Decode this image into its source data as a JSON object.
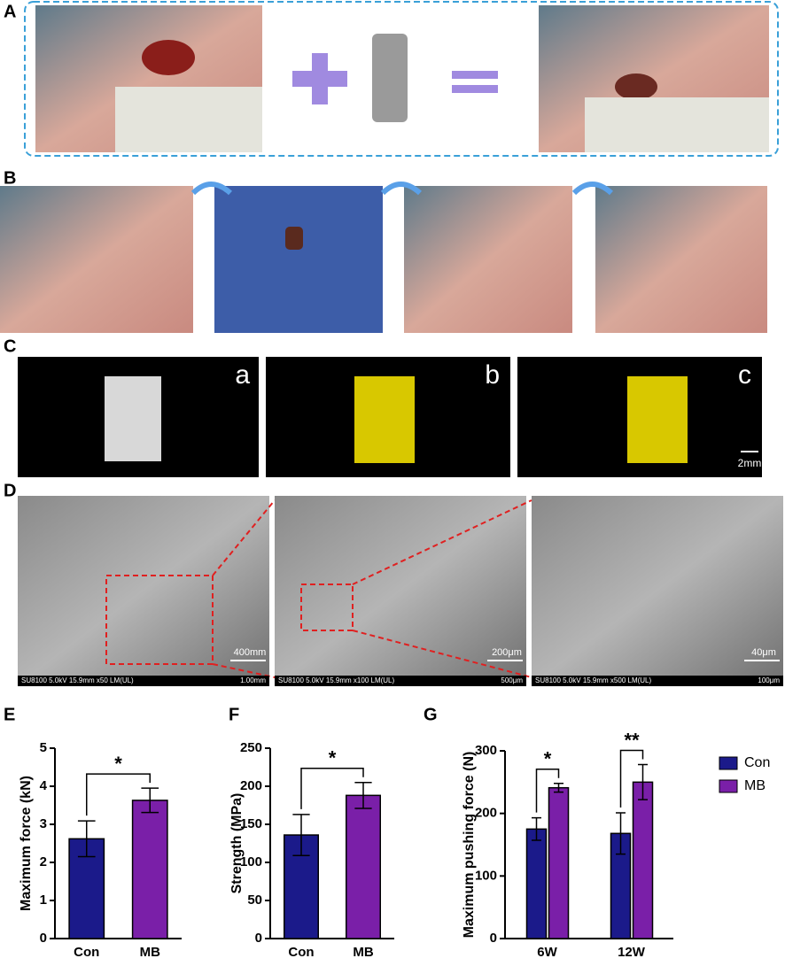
{
  "panel_labels": [
    "A",
    "B",
    "C",
    "D",
    "E",
    "F",
    "G"
  ],
  "micro_ct": {
    "labels": [
      "a",
      "b",
      "c"
    ],
    "scale": "2mm"
  },
  "sem": [
    {
      "scale": "400mm",
      "footer": "SU8100 5.0kV 15.9mm x50 LM(UL)",
      "field": "1.00mm"
    },
    {
      "scale": "200μm",
      "footer": "SU8100 5.0kV 15.9mm x100 LM(UL)",
      "field": "500μm"
    },
    {
      "scale": "40μm",
      "footer": "SU8100 5.0kV 15.9mm x500 LM(UL)",
      "field": "100μm"
    }
  ],
  "chart_data": [
    {
      "type": "bar",
      "ylabel": "Maximum  force (kN)",
      "categories": [
        "Con",
        "MB"
      ],
      "values": [
        2.62,
        3.63
      ],
      "errors": [
        0.47,
        0.32
      ],
      "colors": [
        "#1b1a8a",
        "#7a1fa8"
      ],
      "ylim": [
        0,
        5
      ],
      "yticks": [
        0,
        1,
        2,
        3,
        4,
        5
      ],
      "significance": "*"
    },
    {
      "type": "bar",
      "ylabel": "Strength (MPa)",
      "categories": [
        "Con",
        "MB"
      ],
      "values": [
        136,
        188
      ],
      "errors": [
        27,
        17
      ],
      "colors": [
        "#1b1a8a",
        "#7a1fa8"
      ],
      "ylim": [
        0,
        250
      ],
      "yticks": [
        0,
        50,
        100,
        150,
        200,
        250
      ],
      "significance": "*"
    },
    {
      "type": "grouped_bar",
      "ylabel": "Maximum pushing force (N)",
      "categories": [
        "6W",
        "12W"
      ],
      "series": [
        {
          "name": "Con",
          "color": "#1b1a8a",
          "values": [
            175,
            168
          ],
          "errors": [
            18,
            33
          ]
        },
        {
          "name": "MB",
          "color": "#7a1fa8",
          "values": [
            241,
            250
          ],
          "errors": [
            7,
            28
          ]
        }
      ],
      "ylim": [
        0,
        300
      ],
      "yticks": [
        0,
        100,
        200,
        300
      ],
      "significance": [
        "*",
        "**"
      ],
      "legend": "right"
    }
  ]
}
